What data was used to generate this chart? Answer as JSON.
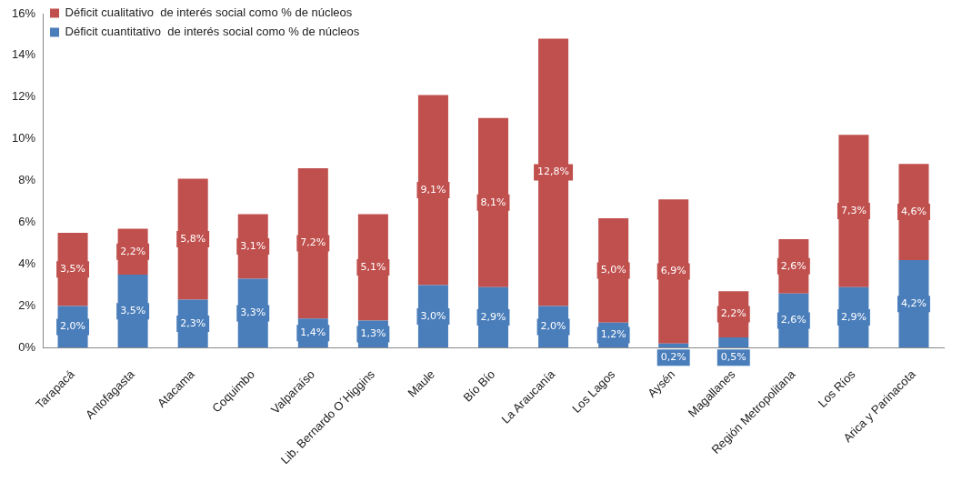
{
  "chart_data": {
    "type": "bar",
    "stacked": true,
    "legend": "top left",
    "grid": false,
    "categories": [
      "Tarapacá",
      "Antofagasta",
      "Atacama",
      "Coquimbo",
      "Valparaíso",
      "Lib. Bernardo O´Higgins",
      "Maule",
      "Bío Bío",
      "La Araucanía",
      "Los Lagos",
      "Aysén",
      "Magallanes",
      "Región Metropolitana",
      "Los Ríos",
      "Arica y Parinacota"
    ],
    "ylim": [
      0,
      16
    ],
    "yticks": [
      {
        "value": 0,
        "label": "0%"
      },
      {
        "value": 2,
        "label": "2%"
      },
      {
        "value": 4,
        "label": "4%"
      },
      {
        "value": 6,
        "label": "6%"
      },
      {
        "value": 8,
        "label": "8%"
      },
      {
        "value": 10,
        "label": "10%"
      },
      {
        "value": 12,
        "label": "12%"
      },
      {
        "value": 14,
        "label": "14%"
      },
      {
        "value": 16,
        "label": "16%"
      }
    ],
    "series": [
      {
        "name": "Déficit cuantitativo  de interés social como % de núcleos",
        "color": "#4a7ebb",
        "values": [
          2.0,
          3.5,
          2.3,
          3.3,
          1.4,
          1.3,
          3.0,
          2.9,
          2.0,
          1.2,
          0.2,
          0.5,
          2.6,
          2.9,
          4.2
        ],
        "value_labels": [
          "2,0%",
          "3,5%",
          "2,3%",
          "3,3%",
          "1,4%",
          "1,3%",
          "3,0%",
          "2,9%",
          "2,0%",
          "1,2%",
          "0,2%",
          "0,5%",
          "2,6%",
          "2,9%",
          "4,2%"
        ]
      },
      {
        "name": "Déficit cualitativo  de interés social como % de núcleos",
        "color": "#c0504d",
        "values": [
          3.5,
          2.2,
          5.8,
          3.1,
          7.2,
          5.1,
          9.1,
          8.1,
          12.8,
          5.0,
          6.9,
          2.2,
          2.6,
          7.3,
          4.6
        ],
        "value_labels": [
          "3,5%",
          "2,2%",
          "5,8%",
          "3,1%",
          "7,2%",
          "5,1%",
          "9,1%",
          "8,1%",
          "12,8%",
          "5,0%",
          "6,9%",
          "2,2%",
          "2,6%",
          "7,3%",
          "4,6%"
        ]
      }
    ]
  }
}
